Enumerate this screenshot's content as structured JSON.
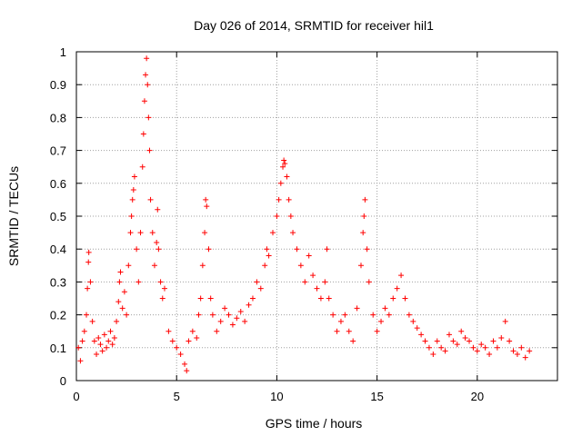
{
  "chart_data": {
    "type": "scatter",
    "title": "Day 026 of 2014, SRMTID for receiver hil1",
    "xlabel": "GPS time / hours",
    "ylabel": "SRMTID / TECUs",
    "xlim": [
      0,
      24
    ],
    "ylim": [
      0,
      1
    ],
    "x_ticks": [
      "0",
      "5",
      "10",
      "15",
      "20"
    ],
    "y_ticks": [
      "0",
      "0.1",
      "0.2",
      "0.3",
      "0.4",
      "0.5",
      "0.6",
      "0.7",
      "0.8",
      "0.9",
      "1"
    ],
    "grid": true,
    "marker": "plus",
    "series": [
      {
        "name": "SRMTID",
        "color": "#ff0000",
        "points": [
          [
            0.1,
            0.1
          ],
          [
            0.2,
            0.06
          ],
          [
            0.3,
            0.12
          ],
          [
            0.4,
            0.15
          ],
          [
            0.5,
            0.2
          ],
          [
            0.55,
            0.28
          ],
          [
            0.6,
            0.36
          ],
          [
            0.62,
            0.39
          ],
          [
            0.7,
            0.3
          ],
          [
            0.8,
            0.18
          ],
          [
            0.9,
            0.12
          ],
          [
            1.0,
            0.08
          ],
          [
            1.1,
            0.13
          ],
          [
            1.2,
            0.11
          ],
          [
            1.3,
            0.09
          ],
          [
            1.4,
            0.14
          ],
          [
            1.5,
            0.1
          ],
          [
            1.6,
            0.12
          ],
          [
            1.7,
            0.15
          ],
          [
            1.8,
            0.11
          ],
          [
            1.9,
            0.13
          ],
          [
            2.0,
            0.18
          ],
          [
            2.1,
            0.24
          ],
          [
            2.15,
            0.3
          ],
          [
            2.2,
            0.33
          ],
          [
            2.3,
            0.22
          ],
          [
            2.4,
            0.27
          ],
          [
            2.5,
            0.2
          ],
          [
            2.6,
            0.35
          ],
          [
            2.7,
            0.45
          ],
          [
            2.75,
            0.5
          ],
          [
            2.8,
            0.55
          ],
          [
            2.85,
            0.58
          ],
          [
            2.9,
            0.62
          ],
          [
            3.0,
            0.4
          ],
          [
            3.1,
            0.3
          ],
          [
            3.2,
            0.45
          ],
          [
            3.3,
            0.65
          ],
          [
            3.35,
            0.75
          ],
          [
            3.4,
            0.85
          ],
          [
            3.45,
            0.93
          ],
          [
            3.5,
            0.98
          ],
          [
            3.55,
            0.9
          ],
          [
            3.6,
            0.8
          ],
          [
            3.65,
            0.7
          ],
          [
            3.7,
            0.55
          ],
          [
            3.8,
            0.45
          ],
          [
            3.9,
            0.35
          ],
          [
            4.0,
            0.42
          ],
          [
            4.05,
            0.52
          ],
          [
            4.1,
            0.4
          ],
          [
            4.2,
            0.3
          ],
          [
            4.3,
            0.25
          ],
          [
            4.4,
            0.28
          ],
          [
            4.6,
            0.15
          ],
          [
            4.8,
            0.12
          ],
          [
            5.0,
            0.1
          ],
          [
            5.2,
            0.08
          ],
          [
            5.4,
            0.05
          ],
          [
            5.5,
            0.03
          ],
          [
            5.6,
            0.12
          ],
          [
            5.8,
            0.15
          ],
          [
            6.0,
            0.13
          ],
          [
            6.1,
            0.2
          ],
          [
            6.2,
            0.25
          ],
          [
            6.3,
            0.35
          ],
          [
            6.4,
            0.45
          ],
          [
            6.45,
            0.55
          ],
          [
            6.5,
            0.53
          ],
          [
            6.6,
            0.4
          ],
          [
            6.7,
            0.25
          ],
          [
            6.8,
            0.2
          ],
          [
            7.0,
            0.15
          ],
          [
            7.2,
            0.18
          ],
          [
            7.4,
            0.22
          ],
          [
            7.6,
            0.2
          ],
          [
            7.8,
            0.17
          ],
          [
            8.0,
            0.19
          ],
          [
            8.2,
            0.21
          ],
          [
            8.4,
            0.18
          ],
          [
            8.6,
            0.23
          ],
          [
            8.8,
            0.25
          ],
          [
            9.0,
            0.3
          ],
          [
            9.2,
            0.28
          ],
          [
            9.4,
            0.35
          ],
          [
            9.5,
            0.4
          ],
          [
            9.6,
            0.38
          ],
          [
            9.8,
            0.45
          ],
          [
            10.0,
            0.5
          ],
          [
            10.1,
            0.55
          ],
          [
            10.2,
            0.6
          ],
          [
            10.3,
            0.65
          ],
          [
            10.35,
            0.67
          ],
          [
            10.4,
            0.66
          ],
          [
            10.5,
            0.62
          ],
          [
            10.6,
            0.55
          ],
          [
            10.7,
            0.5
          ],
          [
            10.8,
            0.45
          ],
          [
            11.0,
            0.4
          ],
          [
            11.2,
            0.35
          ],
          [
            11.4,
            0.3
          ],
          [
            11.6,
            0.38
          ],
          [
            11.8,
            0.32
          ],
          [
            12.0,
            0.28
          ],
          [
            12.2,
            0.25
          ],
          [
            12.4,
            0.3
          ],
          [
            12.5,
            0.4
          ],
          [
            12.6,
            0.25
          ],
          [
            12.8,
            0.2
          ],
          [
            13.0,
            0.15
          ],
          [
            13.2,
            0.18
          ],
          [
            13.4,
            0.2
          ],
          [
            13.6,
            0.15
          ],
          [
            13.8,
            0.12
          ],
          [
            14.0,
            0.22
          ],
          [
            14.2,
            0.35
          ],
          [
            14.3,
            0.45
          ],
          [
            14.35,
            0.5
          ],
          [
            14.4,
            0.55
          ],
          [
            14.5,
            0.4
          ],
          [
            14.6,
            0.3
          ],
          [
            14.8,
            0.2
          ],
          [
            15.0,
            0.15
          ],
          [
            15.2,
            0.18
          ],
          [
            15.4,
            0.22
          ],
          [
            15.6,
            0.2
          ],
          [
            15.8,
            0.25
          ],
          [
            16.0,
            0.28
          ],
          [
            16.2,
            0.32
          ],
          [
            16.4,
            0.25
          ],
          [
            16.6,
            0.2
          ],
          [
            16.8,
            0.18
          ],
          [
            17.0,
            0.16
          ],
          [
            17.2,
            0.14
          ],
          [
            17.4,
            0.12
          ],
          [
            17.6,
            0.1
          ],
          [
            17.8,
            0.08
          ],
          [
            18.0,
            0.12
          ],
          [
            18.2,
            0.1
          ],
          [
            18.4,
            0.09
          ],
          [
            18.6,
            0.14
          ],
          [
            18.8,
            0.12
          ],
          [
            19.0,
            0.11
          ],
          [
            19.2,
            0.15
          ],
          [
            19.4,
            0.13
          ],
          [
            19.6,
            0.12
          ],
          [
            19.8,
            0.1
          ],
          [
            20.0,
            0.09
          ],
          [
            20.2,
            0.11
          ],
          [
            20.4,
            0.1
          ],
          [
            20.6,
            0.08
          ],
          [
            20.8,
            0.12
          ],
          [
            21.0,
            0.1
          ],
          [
            21.2,
            0.13
          ],
          [
            21.4,
            0.18
          ],
          [
            21.6,
            0.12
          ],
          [
            21.8,
            0.09
          ],
          [
            22.0,
            0.08
          ],
          [
            22.2,
            0.1
          ],
          [
            22.4,
            0.07
          ],
          [
            22.6,
            0.09
          ]
        ]
      }
    ]
  }
}
